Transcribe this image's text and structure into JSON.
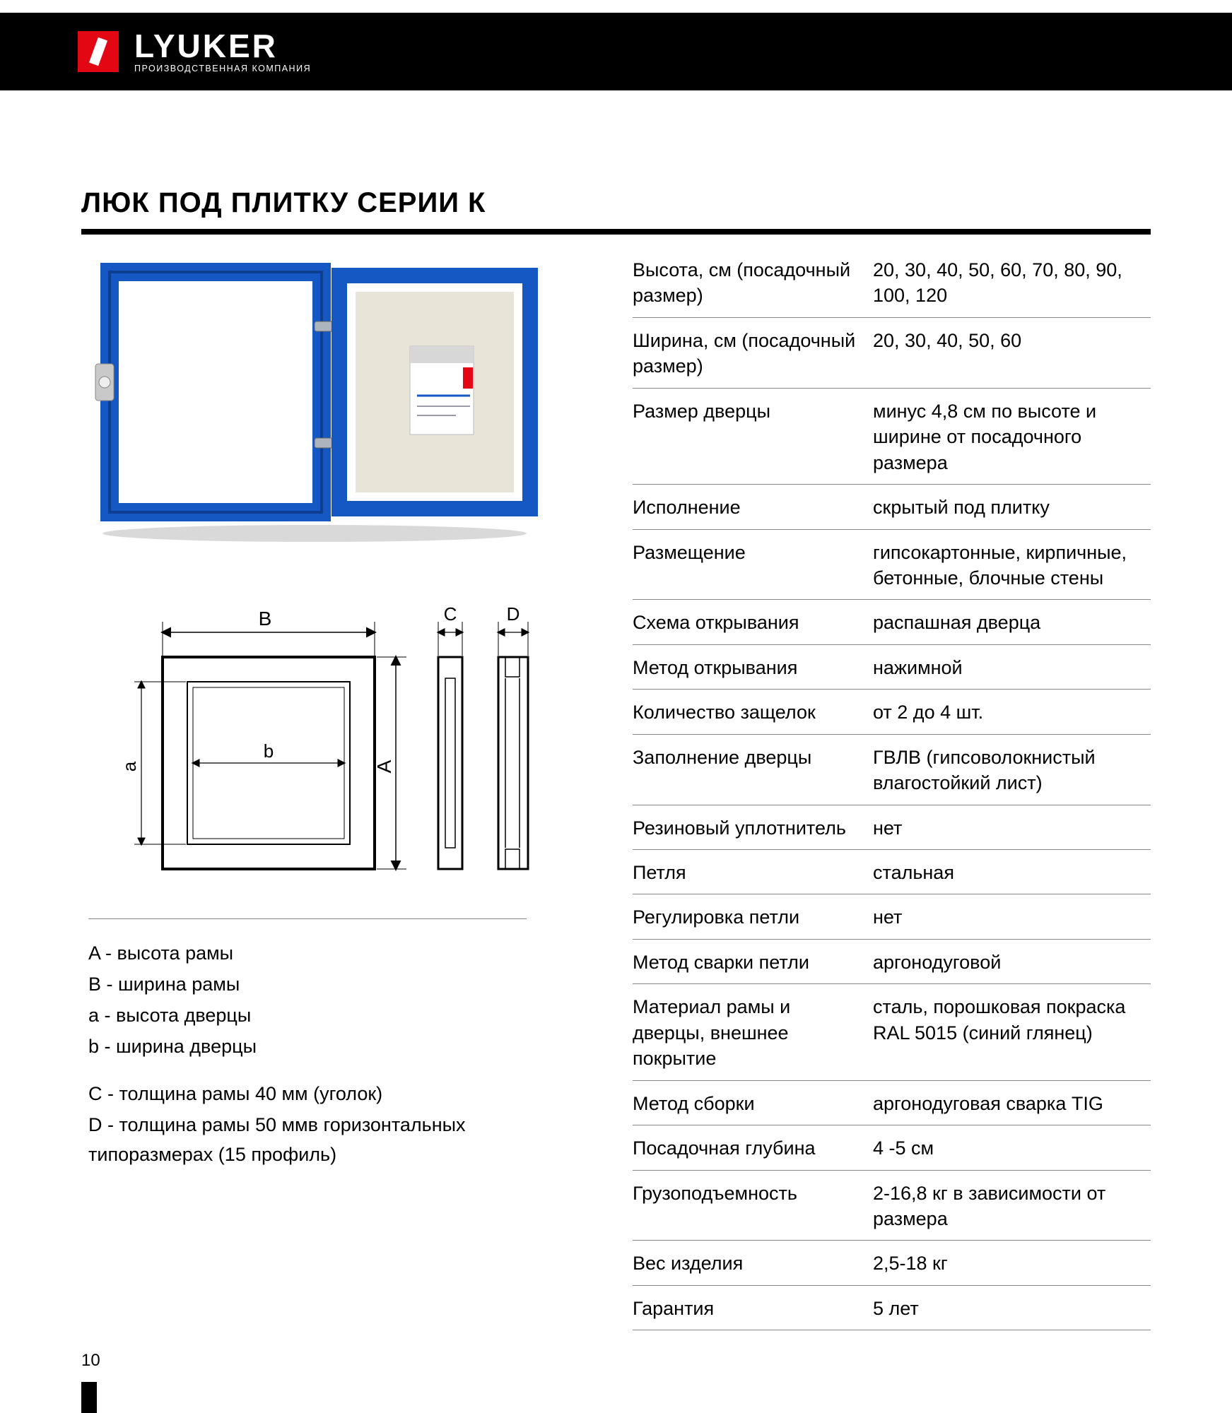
{
  "colors": {
    "header_bg": "#000000",
    "accent_red": "#e30613",
    "product_blue": "#1558c4",
    "product_blue_dark": "#0e3e90",
    "rule": "#888888",
    "text": "#000000",
    "white": "#ffffff",
    "beige": "#e8e4d8"
  },
  "header": {
    "brand": "LYUKER",
    "subtitle": "ПРОИЗВОДСТВЕННАЯ КОМПАНИЯ"
  },
  "title": "ЛЮК ПОД ПЛИТКУ СЕРИИ К",
  "drawing": {
    "labels": {
      "B": "B",
      "C": "C",
      "D": "D",
      "A": "A",
      "a": "a",
      "b": "b"
    }
  },
  "legend": {
    "items": [
      "A - высота рамы",
      "B - ширина рамы",
      "a - высота дверцы",
      "b - ширина дверцы"
    ],
    "extra": [
      "C - толщина рамы 40 мм (уголок)",
      "D - толщина рамы 50 ммв горизонтальных типоразмерах (15 профиль)"
    ]
  },
  "specs": [
    {
      "label": "Высота, см (посадочный размер)",
      "value": "20, 30, 40, 50, 60, 70, 80, 90, 100, 120"
    },
    {
      "label": "Ширина, см (посадочный размер)",
      "value": "20, 30, 40, 50, 60"
    },
    {
      "label": "Размер дверцы",
      "value": "минус 4,8 см по высоте и ширине от посадочного размера"
    },
    {
      "label": "Исполнение",
      "value": "скрытый под плитку"
    },
    {
      "label": "Размещение",
      "value": "гипсокартонные, кирпичные, бетонные, блочные стены"
    },
    {
      "label": "Схема открывания",
      "value": "распашная дверца"
    },
    {
      "label": "Метод открывания",
      "value": "нажимной"
    },
    {
      "label": "Количество защелок",
      "value": "от 2 до 4 шт."
    },
    {
      "label": "Заполнение дверцы",
      "value": "ГВЛВ (гипсоволокнистый влагостойкий лист)"
    },
    {
      "label": "Резиновый уплотнитель",
      "value": "нет"
    },
    {
      "label": "Петля",
      "value": "стальная"
    },
    {
      "label": "Регулировка петли",
      "value": "нет"
    },
    {
      "label": "Метод сварки петли",
      "value": "аргонодуговой"
    },
    {
      "label": "Материал рамы и дверцы, внешнее покрытие",
      "value": "сталь, порошковая покраска RAL 5015 (синий глянец)"
    },
    {
      "label": "Метод сборки",
      "value": "аргонодуговая сварка TIG"
    },
    {
      "label": "Посадочная глубина",
      "value": "4 -5 см"
    },
    {
      "label": "Грузоподъемность",
      "value": "2-16,8 кг в зависимости от размера"
    },
    {
      "label": "Вес  изделия",
      "value": " 2,5-18 кг"
    },
    {
      "label": "Гарантия",
      "value": "5 лет"
    }
  ],
  "page_number": "10"
}
